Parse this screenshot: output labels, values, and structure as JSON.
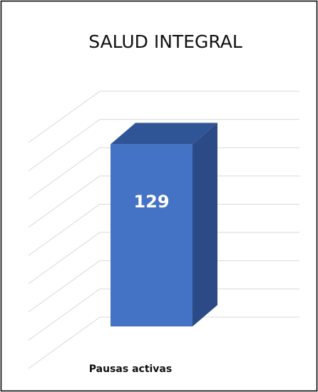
{
  "chart_data": {
    "type": "bar3d",
    "title": "SALUD INTEGRAL",
    "categories": [
      "Pausas activas"
    ],
    "values": [
      129
    ],
    "color": "#4472c4",
    "ylim": [
      0,
      160
    ],
    "yticks": [
      0,
      20,
      40,
      60,
      80,
      100,
      120,
      140,
      160
    ],
    "grid": true
  }
}
